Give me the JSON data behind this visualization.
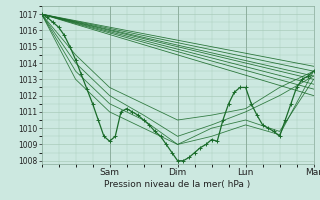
{
  "bg_color": "#cce8e0",
  "grid_color": "#aaccbb",
  "line_color": "#1a6b2a",
  "ylabel_ticks": [
    1008,
    1009,
    1010,
    1011,
    1012,
    1013,
    1014,
    1015,
    1016,
    1017
  ],
  "ylim": [
    1007.8,
    1017.5
  ],
  "xlim": [
    0,
    96
  ],
  "xtick_positions": [
    24,
    48,
    72,
    96
  ],
  "xtick_labels": [
    "Sam",
    "Dim",
    "Lun",
    "Mar"
  ],
  "xlabel": "Pression niveau de la mer( hPa )",
  "fan_lines": [
    [
      0,
      1017.0,
      96,
      1013.5
    ],
    [
      0,
      1017.0,
      96,
      1013.2
    ],
    [
      0,
      1017.0,
      96,
      1013.0
    ],
    [
      0,
      1017.0,
      96,
      1012.7
    ],
    [
      0,
      1017.0,
      96,
      1012.4
    ],
    [
      0,
      1017.0,
      96,
      1012.0
    ],
    [
      0,
      1017.0,
      96,
      1013.8
    ]
  ],
  "curved_lines": [
    {
      "x": [
        0,
        12,
        24,
        36,
        48,
        60,
        72,
        84,
        96
      ],
      "y": [
        1017.0,
        1014.5,
        1012.5,
        1011.5,
        1010.5,
        1010.8,
        1011.2,
        1012.5,
        1013.5
      ]
    },
    {
      "x": [
        0,
        12,
        24,
        36,
        48,
        60,
        72,
        84,
        96
      ],
      "y": [
        1017.0,
        1014.0,
        1012.0,
        1010.8,
        1009.5,
        1010.2,
        1011.0,
        1012.0,
        1013.2
      ]
    },
    {
      "x": [
        0,
        12,
        24,
        36,
        48,
        60,
        72,
        84,
        96
      ],
      "y": [
        1017.0,
        1013.5,
        1011.5,
        1010.5,
        1009.0,
        1010.0,
        1010.5,
        1009.8,
        1013.0
      ]
    },
    {
      "x": [
        0,
        12,
        24,
        36,
        48,
        60,
        72,
        84,
        96
      ],
      "y": [
        1017.0,
        1013.0,
        1011.0,
        1010.0,
        1009.0,
        1009.5,
        1010.2,
        1009.6,
        1013.5
      ]
    }
  ],
  "main_line_x": [
    0,
    2,
    4,
    6,
    8,
    10,
    12,
    14,
    16,
    18,
    20,
    22,
    24,
    26,
    28,
    30,
    32,
    34,
    36,
    38,
    40,
    42,
    44,
    46,
    48,
    50,
    52,
    54,
    56,
    58,
    60,
    62,
    64,
    66,
    68,
    70,
    72,
    74,
    76,
    78,
    80,
    82,
    84,
    86,
    88,
    90,
    92,
    94,
    96
  ],
  "main_line_y": [
    1017.0,
    1016.8,
    1016.5,
    1016.2,
    1015.7,
    1015.0,
    1014.2,
    1013.3,
    1012.4,
    1011.5,
    1010.5,
    1009.5,
    1009.2,
    1009.5,
    1011.0,
    1011.2,
    1011.0,
    1010.8,
    1010.5,
    1010.2,
    1009.8,
    1009.5,
    1009.0,
    1008.5,
    1008.0,
    1008.0,
    1008.2,
    1008.5,
    1008.8,
    1009.0,
    1009.3,
    1009.2,
    1010.5,
    1011.5,
    1012.2,
    1012.5,
    1012.5,
    1011.5,
    1010.8,
    1010.2,
    1010.0,
    1009.8,
    1009.5,
    1010.5,
    1011.5,
    1012.5,
    1013.0,
    1013.2,
    1013.5
  ]
}
